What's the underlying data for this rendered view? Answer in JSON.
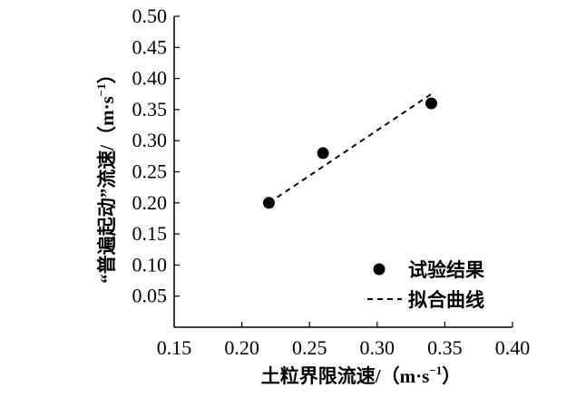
{
  "chart_data": {
    "type": "scatter",
    "xlabel": "土粒界限流速/（m·s",
    "xlabel_sup": "−1",
    "xlabel_tail": "）",
    "ylabel": "“普遍起动”流速/（m·s",
    "ylabel_sup": "−1",
    "ylabel_tail": "）",
    "xlim": [
      0.15,
      0.4
    ],
    "ylim": [
      0.0,
      0.5
    ],
    "x_ticks": [
      "0.15",
      "0.20",
      "0.25",
      "0.30",
      "0.35",
      "0.40"
    ],
    "y_ticks": [
      "0.05",
      "0.10",
      "0.15",
      "0.20",
      "0.25",
      "0.30",
      "0.35",
      "0.40",
      "0.45",
      "0.50"
    ],
    "grid": false,
    "legend_position": "bottom-right",
    "series": [
      {
        "name": "试验结果",
        "kind": "scatter",
        "marker": "filled-circle",
        "color": "#000000",
        "points": [
          {
            "x": 0.22,
            "y": 0.2
          },
          {
            "x": 0.26,
            "y": 0.28
          },
          {
            "x": 0.34,
            "y": 0.36
          }
        ]
      },
      {
        "name": "拟合曲线",
        "kind": "line",
        "style": "dashed",
        "color": "#000000",
        "points": [
          {
            "x": 0.22,
            "y": 0.2
          },
          {
            "x": 0.34,
            "y": 0.375
          }
        ]
      }
    ]
  }
}
